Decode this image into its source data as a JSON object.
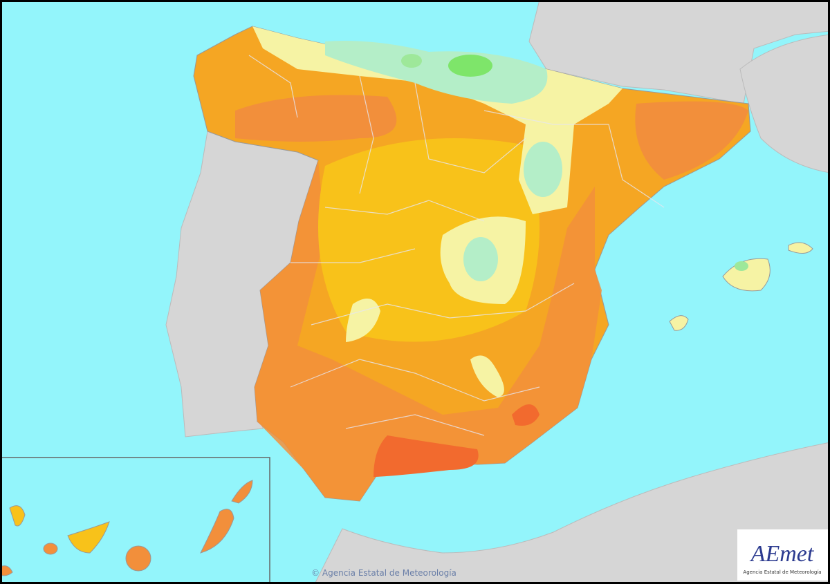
{
  "map": {
    "copyright": "© Agencia Estatal de Meteorología",
    "logo": {
      "name": "AEmet",
      "subtitle": "Agencia Estatal de Meteorología"
    }
  }
}
